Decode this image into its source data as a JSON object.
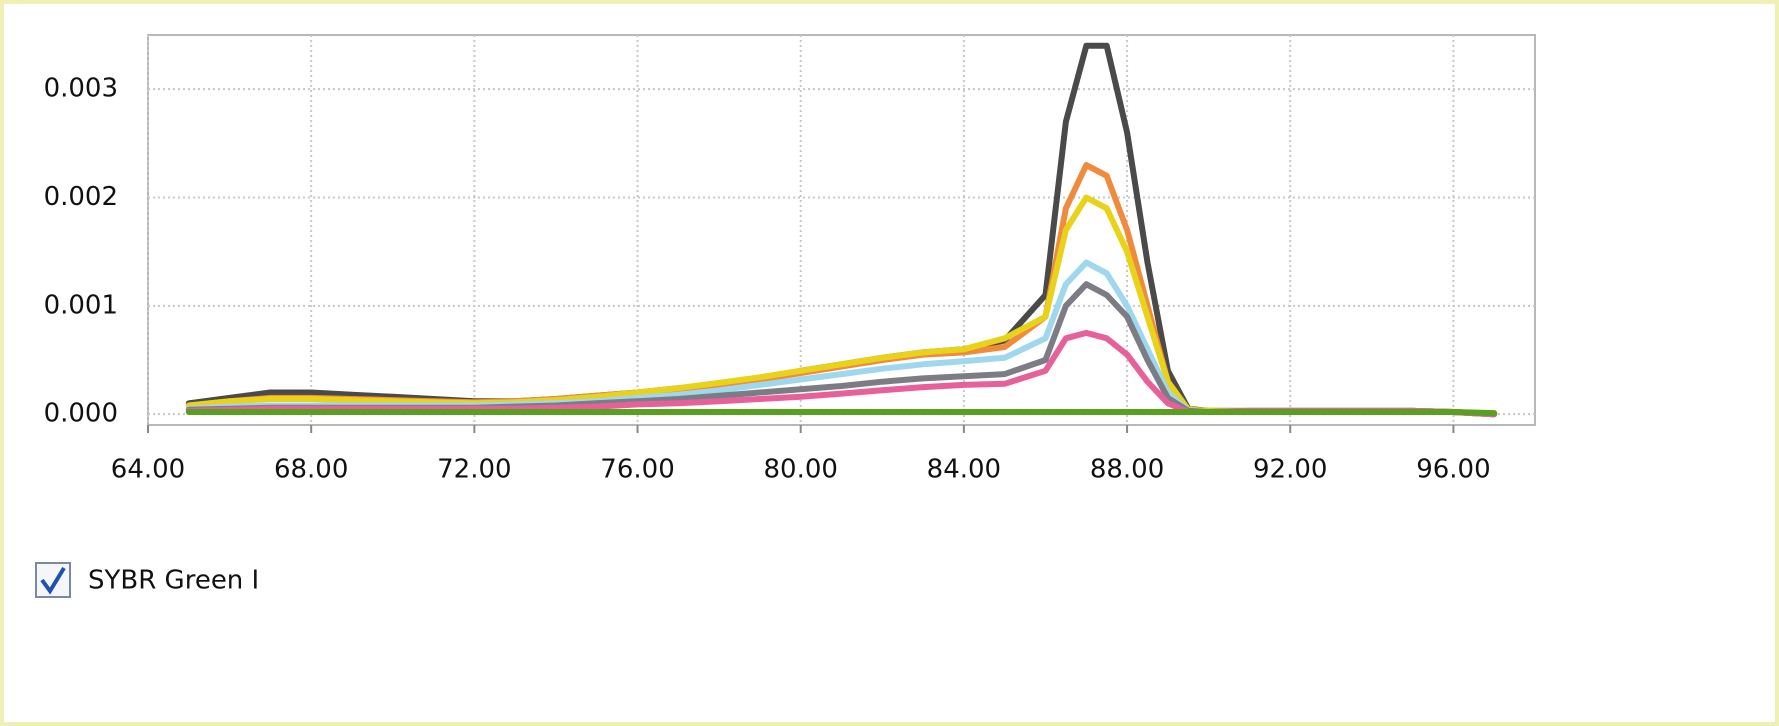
{
  "chart_data": {
    "type": "line",
    "x": [
      65,
      66,
      67,
      68,
      69,
      70,
      71,
      72,
      73,
      74,
      75,
      76,
      77,
      78,
      79,
      80,
      81,
      82,
      83,
      84,
      85,
      86,
      86.5,
      87,
      87.5,
      88,
      88.5,
      89,
      89.5,
      90,
      91,
      92,
      93,
      94,
      95,
      96,
      97
    ],
    "series": [
      {
        "color": "#4a4a4a",
        "values": [
          0.0001,
          0.00015,
          0.0002,
          0.0002,
          0.00018,
          0.00016,
          0.00014,
          0.00012,
          0.00012,
          0.00014,
          0.00017,
          0.0002,
          0.00024,
          0.00028,
          0.00033,
          0.0004,
          0.00046,
          0.00052,
          0.00057,
          0.0006,
          0.00068,
          0.0011,
          0.0027,
          0.0034,
          0.0034,
          0.0026,
          0.0014,
          0.0004,
          5e-05,
          3e-05,
          3e-05,
          3e-05,
          3e-05,
          3e-05,
          3e-05,
          2e-05,
          0
        ]
      },
      {
        "color": "#f08a3c",
        "values": [
          8e-05,
          0.00012,
          0.00015,
          0.00015,
          0.00014,
          0.00013,
          0.00012,
          0.00011,
          0.00012,
          0.00014,
          0.00017,
          0.0002,
          0.00023,
          0.00027,
          0.00032,
          0.00038,
          0.00044,
          0.0005,
          0.00055,
          0.00057,
          0.00062,
          0.0009,
          0.0019,
          0.0023,
          0.0022,
          0.0017,
          0.001,
          0.0003,
          4e-05,
          3e-05,
          3e-05,
          3e-05,
          3e-05,
          3e-05,
          3e-05,
          2e-05,
          0
        ]
      },
      {
        "color": "#e8d21a",
        "values": [
          8e-05,
          0.00012,
          0.00014,
          0.00014,
          0.00013,
          0.00012,
          0.00011,
          0.0001,
          0.00011,
          0.00013,
          0.00016,
          0.0002,
          0.00024,
          0.00029,
          0.00034,
          0.0004,
          0.00046,
          0.00052,
          0.00057,
          0.0006,
          0.0007,
          0.0009,
          0.0017,
          0.002,
          0.0019,
          0.0015,
          0.0009,
          0.0003,
          4e-05,
          3e-05,
          3e-05,
          3e-05,
          3e-05,
          3e-05,
          3e-05,
          2e-05,
          0
        ]
      },
      {
        "color": "#9fd8ee",
        "values": [
          5e-05,
          7e-05,
          8e-05,
          8e-05,
          8e-05,
          8e-05,
          8e-05,
          8e-05,
          9e-05,
          0.0001,
          0.00012,
          0.00015,
          0.00018,
          0.00022,
          0.00027,
          0.00032,
          0.00037,
          0.00042,
          0.00046,
          0.00049,
          0.00052,
          0.0007,
          0.0012,
          0.0014,
          0.0013,
          0.001,
          0.0006,
          0.0002,
          3e-05,
          2e-05,
          3e-05,
          3e-05,
          3e-05,
          3e-05,
          3e-05,
          2e-05,
          0
        ]
      },
      {
        "color": "#7c7c84",
        "values": [
          4e-05,
          5e-05,
          6e-05,
          6e-05,
          6e-05,
          6e-05,
          6e-05,
          6e-05,
          7e-05,
          8e-05,
          0.0001,
          0.00012,
          0.00014,
          0.00017,
          0.0002,
          0.00023,
          0.00026,
          0.0003,
          0.00033,
          0.00035,
          0.00037,
          0.0005,
          0.001,
          0.0012,
          0.0011,
          0.0009,
          0.0005,
          0.00015,
          3e-05,
          2e-05,
          3e-05,
          3e-05,
          3e-05,
          3e-05,
          3e-05,
          2e-05,
          0
        ]
      },
      {
        "color": "#e8609a",
        "values": [
          3e-05,
          4e-05,
          5e-05,
          5e-05,
          5e-05,
          5e-05,
          5e-05,
          5e-05,
          5e-05,
          6e-05,
          7e-05,
          9e-05,
          0.0001,
          0.00012,
          0.00014,
          0.00016,
          0.00019,
          0.00022,
          0.00025,
          0.00027,
          0.00028,
          0.0004,
          0.0007,
          0.00075,
          0.0007,
          0.00055,
          0.0003,
          0.0001,
          2e-05,
          2e-05,
          3e-05,
          3e-05,
          3e-05,
          3e-05,
          3e-05,
          2e-05,
          0
        ]
      },
      {
        "color": "#5aa020",
        "values": [
          2e-05,
          2e-05,
          2e-05,
          2e-05,
          2e-05,
          2e-05,
          2e-05,
          2e-05,
          2e-05,
          2e-05,
          2e-05,
          2e-05,
          2e-05,
          2e-05,
          2e-05,
          2e-05,
          2e-05,
          2e-05,
          2e-05,
          2e-05,
          2e-05,
          2e-05,
          2e-05,
          2e-05,
          2e-05,
          2e-05,
          2e-05,
          2e-05,
          2e-05,
          2e-05,
          2e-05,
          2e-05,
          2e-05,
          2e-05,
          2e-05,
          2e-05,
          1e-05
        ]
      }
    ],
    "xlim": [
      64,
      98
    ],
    "ylim": [
      -0.0001,
      0.0035
    ],
    "xticks": [
      {
        "value": 64,
        "label": "64.00"
      },
      {
        "value": 68,
        "label": "68.00"
      },
      {
        "value": 72,
        "label": "72.00"
      },
      {
        "value": 76,
        "label": "76.00"
      },
      {
        "value": 80,
        "label": "80.00"
      },
      {
        "value": 84,
        "label": "84.00"
      },
      {
        "value": 88,
        "label": "88.00"
      },
      {
        "value": 92,
        "label": "92.00"
      },
      {
        "value": 96,
        "label": "96.00"
      }
    ],
    "yticks": [
      {
        "value": 0,
        "label": "0.000"
      },
      {
        "value": 0.001,
        "label": "0.001"
      },
      {
        "value": 0.002,
        "label": "0.002"
      },
      {
        "value": 0.003,
        "label": "0.003"
      }
    ],
    "grid": true,
    "channel": "SYBR Green I"
  }
}
